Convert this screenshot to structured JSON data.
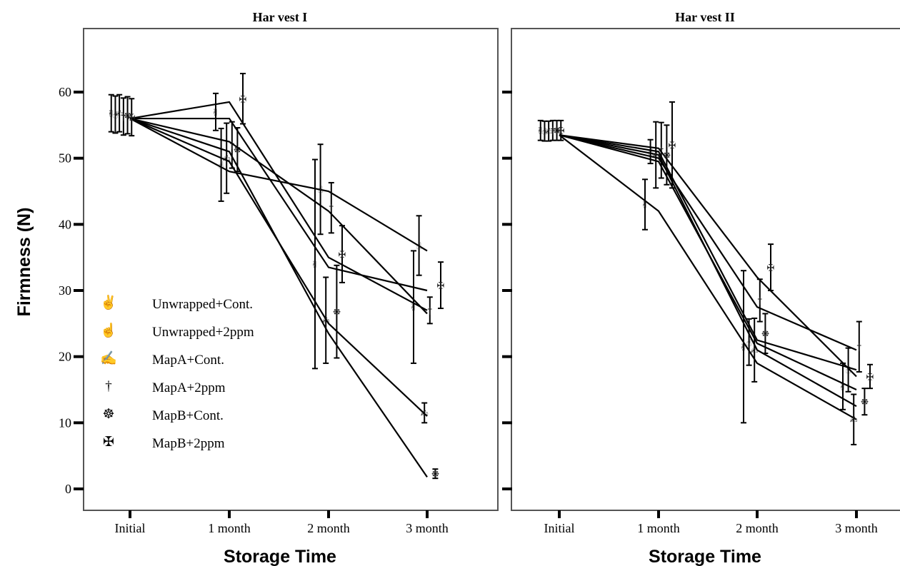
{
  "chart_data": [
    {
      "type": "line",
      "title": "Har vest I",
      "xlabel": "Storage Time",
      "ylabel": "Firmness (N)",
      "categories": [
        "Initial",
        "1 month",
        "2 month",
        "3 month"
      ],
      "ylim": [
        0,
        70
      ],
      "yticks": [
        0,
        10,
        20,
        30,
        40,
        50,
        60
      ],
      "grid": false,
      "legend": "left-bottom",
      "series": [
        {
          "name": "Unwrapped+Cont.",
          "values": [
            56,
            56,
            33.5,
            30
          ],
          "markers": [
            56.8,
            57,
            34,
            27.5
          ],
          "err": [
            2.8,
            2.8,
            15.8,
            8.5
          ]
        },
        {
          "name": "Unwrapped+2ppm",
          "values": [
            56,
            48,
            45,
            36
          ],
          "markers": [
            56.6,
            49,
            45.3,
            36.8
          ],
          "err": [
            2.8,
            5.5,
            6.8,
            4.5
          ]
        },
        {
          "name": "MapA+Cont.",
          "values": [
            56,
            58.5,
            35,
            27
          ],
          "markers": [
            56.8,
            50,
            25.5,
            11.5
          ],
          "err": [
            2.8,
            5.3,
            6.5,
            1.5
          ]
        },
        {
          "name": "MapA+2ppm",
          "values": [
            56,
            49.5,
            25,
            11
          ],
          "markers": [
            56.3,
            52,
            42.5,
            27
          ],
          "err": [
            2.8,
            3.5,
            3.8,
            2
          ]
        },
        {
          "name": "MapB+Cont.",
          "values": [
            56,
            51,
            23.5,
            1.8
          ],
          "markers": [
            56.5,
            51.3,
            26.8,
            2.3
          ],
          "err": [
            2.8,
            3.3,
            7,
            0.7
          ]
        },
        {
          "name": "MapB+2ppm",
          "values": [
            56,
            52.5,
            42,
            26.5
          ],
          "markers": [
            56.2,
            59,
            35.5,
            30.8
          ],
          "err": [
            2.8,
            3.8,
            4.3,
            3.5
          ]
        }
      ]
    },
    {
      "type": "line",
      "title": "Har vest II",
      "xlabel": "Storage Time",
      "ylabel": "",
      "categories": [
        "Initial",
        "1 month",
        "2 month",
        "3 month"
      ],
      "ylim": [
        0,
        70
      ],
      "yticks": [
        0,
        10,
        20,
        30,
        40,
        50,
        60
      ],
      "ytick_labels_shown": false,
      "grid": false,
      "series": [
        {
          "name": "Unwrapped+Cont.",
          "values": [
            53.5,
            42,
            19,
            10.5
          ],
          "markers": [
            54.2,
            43,
            21.5,
            15.5
          ],
          "err": [
            1.5,
            3.8,
            11.5,
            3.5
          ]
        },
        {
          "name": "Unwrapped+2ppm",
          "values": [
            53.5,
            49.5,
            22,
            15
          ],
          "markers": [
            54.1,
            51,
            22.2,
            18
          ],
          "err": [
            1.5,
            1.8,
            3.5,
            3.3
          ]
        },
        {
          "name": "MapA+Cont.",
          "values": [
            53.5,
            50.5,
            21,
            12.5
          ],
          "markers": [
            54.1,
            50.5,
            21,
            10.5
          ],
          "err": [
            1.5,
            5,
            4.8,
            3.8
          ]
        },
        {
          "name": "MapA+2ppm",
          "values": [
            53.5,
            51,
            22.5,
            18
          ],
          "markers": [
            54.2,
            51.2,
            28.5,
            21.5
          ],
          "err": [
            1.5,
            4.2,
            3.2,
            3.8
          ]
        },
        {
          "name": "MapB+Cont.",
          "values": [
            53.5,
            51.5,
            32,
            17
          ],
          "markers": [
            54.2,
            50.5,
            23.5,
            13.2
          ],
          "err": [
            1.5,
            4.5,
            3,
            2
          ]
        },
        {
          "name": "MapB+2ppm",
          "values": [
            53.5,
            50,
            27.5,
            21
          ],
          "markers": [
            54.2,
            52,
            33.5,
            17
          ],
          "err": [
            1.5,
            6.5,
            3.5,
            1.8
          ]
        }
      ]
    }
  ],
  "legend_icons": [
    "victory-hand-icon",
    "pointing-hand-icon",
    "writing-hand-icon",
    "cross-marker-icon",
    "wheel-marker-icon",
    "maltese-cross-icon"
  ]
}
